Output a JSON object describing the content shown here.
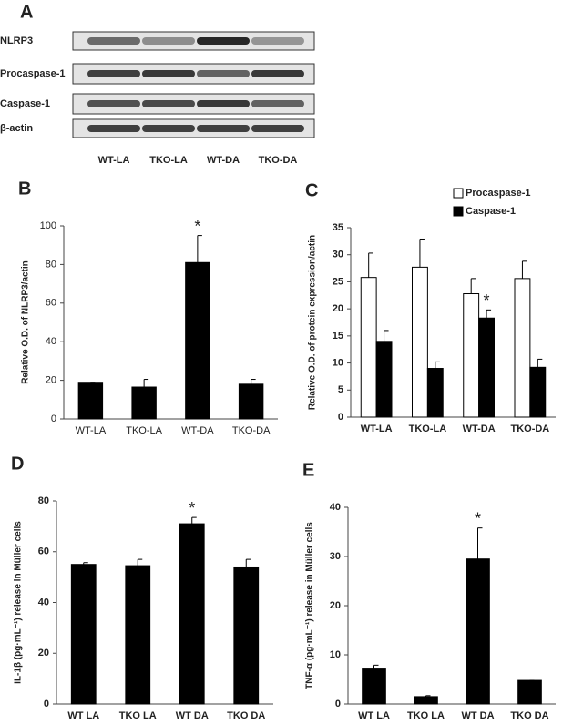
{
  "blot": {
    "panel_label": "A",
    "rows": [
      "NLRP3",
      "Procaspase-1",
      "Caspase-1",
      "β-actin"
    ],
    "lanes": [
      "WT-LA",
      "TKO-LA",
      "WT-DA",
      "TKO-DA"
    ]
  },
  "chart_data": [
    {
      "type": "bar",
      "panel_label": "B",
      "ylabel": "Relative O.D. of NLRP3/actin",
      "categories": [
        "WT-LA",
        "TKO-LA",
        "WT-DA",
        "TKO-DA"
      ],
      "ylim": [
        0,
        100
      ],
      "yticks": [
        0,
        20,
        40,
        60,
        80,
        100
      ],
      "series": [
        {
          "color": "#000000",
          "values": [
            19,
            16.5,
            81,
            18
          ],
          "errors": [
            0,
            4,
            14,
            2.5
          ],
          "significance": [
            null,
            null,
            "*",
            null
          ]
        }
      ]
    },
    {
      "type": "bar",
      "panel_label": "C",
      "ylabel": "Relative O.D. of protein expression/actin",
      "categories": [
        "WT-LA",
        "TKO-LA",
        "WT-DA",
        "TKO-DA"
      ],
      "ylim": [
        0,
        35
      ],
      "yticks": [
        0,
        5,
        10,
        15,
        20,
        25,
        30,
        35
      ],
      "legend": "upper right",
      "series": [
        {
          "name": "Procaspase-1",
          "color": "#ffffff",
          "values": [
            25.8,
            27.7,
            22.8,
            25.6
          ],
          "errors": [
            4.5,
            5.2,
            2.8,
            3.2
          ],
          "significance": [
            null,
            null,
            null,
            null
          ]
        },
        {
          "name": "Caspase-1",
          "color": "#000000",
          "values": [
            14,
            9,
            18.3,
            9.2
          ],
          "errors": [
            2,
            1.2,
            1.5,
            1.5
          ],
          "significance": [
            null,
            null,
            "*",
            null
          ]
        }
      ]
    },
    {
      "type": "bar",
      "panel_label": "D",
      "ylabel": "IL-1β (pg·mL⁻¹) release  in Müller cells",
      "categories": [
        "WT LA",
        "TKO LA",
        "WT DA",
        "TKO DA"
      ],
      "ylim": [
        0,
        80
      ],
      "yticks": [
        0,
        20,
        40,
        60,
        80
      ],
      "series": [
        {
          "color": "#000000",
          "values": [
            55,
            54.5,
            71,
            54
          ],
          "errors": [
            0.7,
            2.5,
            2.5,
            3
          ],
          "significance": [
            null,
            null,
            "*",
            null
          ]
        }
      ]
    },
    {
      "type": "bar",
      "panel_label": "E",
      "ylabel": "TNF-α (pg·mL⁻¹) release in Müller cells",
      "categories": [
        "WT LA",
        "TKO LA",
        "WT DA",
        "TKO DA"
      ],
      "ylim": [
        0,
        40
      ],
      "yticks": [
        0,
        10,
        20,
        30,
        40
      ],
      "series": [
        {
          "color": "#000000",
          "values": [
            7.3,
            1.5,
            29.5,
            4.8
          ],
          "errors": [
            0.6,
            0.2,
            6.3,
            0
          ],
          "significance": [
            null,
            null,
            "*",
            null
          ]
        }
      ]
    }
  ]
}
